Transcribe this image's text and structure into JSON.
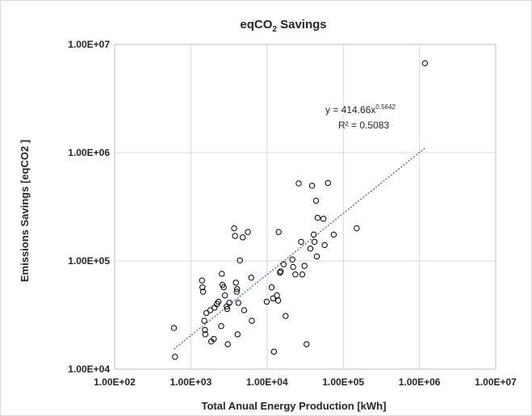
{
  "chart_data": {
    "type": "scatter",
    "title": {
      "prefix": "eqCO",
      "subscript": "2",
      "suffix": " Savings"
    },
    "xlabel": "Total Anual Energy Production [kWh]",
    "ylabel": "Emissions Savings [eqCO2 ]",
    "x_scale": "log",
    "y_scale": "log",
    "xlim": [
      100,
      10000000
    ],
    "ylim": [
      10000,
      10000000
    ],
    "x_ticks": [
      "1.00E+02",
      "1.00E+03",
      "1.00E+04",
      "1.00E+05",
      "1.00E+06",
      "1.00E+07"
    ],
    "y_ticks": [
      "1.00E+04",
      "1.00E+05",
      "1.00E+06",
      "1.00E+07"
    ],
    "grid": true,
    "legend": "none",
    "series": [
      {
        "marker": "open-circle",
        "points": [
          [
            600,
            24000
          ],
          [
            620,
            13000
          ],
          [
            1400,
            66000
          ],
          [
            1420,
            57000
          ],
          [
            1450,
            52000
          ],
          [
            1500,
            28000
          ],
          [
            1530,
            23000
          ],
          [
            1550,
            21000
          ],
          [
            1600,
            33000
          ],
          [
            1800,
            35000
          ],
          [
            1850,
            18000
          ],
          [
            2000,
            19000
          ],
          [
            2050,
            37000
          ],
          [
            2200,
            40000
          ],
          [
            2300,
            42000
          ],
          [
            2500,
            25000
          ],
          [
            2550,
            76000
          ],
          [
            2600,
            60000
          ],
          [
            2700,
            57000
          ],
          [
            2800,
            48000
          ],
          [
            2950,
            38000
          ],
          [
            3000,
            36000
          ],
          [
            3050,
            17000
          ],
          [
            3200,
            41000
          ],
          [
            3700,
            200000
          ],
          [
            3800,
            170000
          ],
          [
            3900,
            63000
          ],
          [
            4000,
            52000
          ],
          [
            4050,
            55000
          ],
          [
            4100,
            21000
          ],
          [
            4200,
            41000
          ],
          [
            4400,
            101000
          ],
          [
            4800,
            165000
          ],
          [
            5000,
            35000
          ],
          [
            5600,
            185000
          ],
          [
            6200,
            70000
          ],
          [
            6300,
            28000
          ],
          [
            9900,
            42000
          ],
          [
            11500,
            57000
          ],
          [
            12000,
            45000
          ],
          [
            12300,
            14500
          ],
          [
            13500,
            48000
          ],
          [
            14000,
            43000
          ],
          [
            14200,
            185000
          ],
          [
            14800,
            78000
          ],
          [
            15100,
            80000
          ],
          [
            16500,
            93000
          ],
          [
            17500,
            31000
          ],
          [
            21500,
            103000
          ],
          [
            22000,
            88000
          ],
          [
            23500,
            75000
          ],
          [
            26000,
            520000
          ],
          [
            28000,
            150000
          ],
          [
            29000,
            75000
          ],
          [
            31000,
            90000
          ],
          [
            33000,
            17000
          ],
          [
            37000,
            130000
          ],
          [
            39000,
            495000
          ],
          [
            41000,
            175000
          ],
          [
            42000,
            150000
          ],
          [
            44000,
            360000
          ],
          [
            45000,
            110000
          ],
          [
            46000,
            250000
          ],
          [
            55000,
            245000
          ],
          [
            57000,
            140000
          ],
          [
            63000,
            525000
          ],
          [
            75000,
            175000
          ],
          [
            150000,
            200000
          ],
          [
            1180000,
            6700000
          ]
        ]
      }
    ],
    "trendline": {
      "type": "power",
      "coefficient": 414.66,
      "exponent": 0.5642,
      "x_range": [
        600,
        1180000
      ],
      "color": "#4472c4",
      "style": "dotted"
    },
    "annotations": {
      "equation_base": "y = 414.66x",
      "equation_exponent": "0.5642",
      "r_squared": "R² = 0.5083"
    }
  }
}
